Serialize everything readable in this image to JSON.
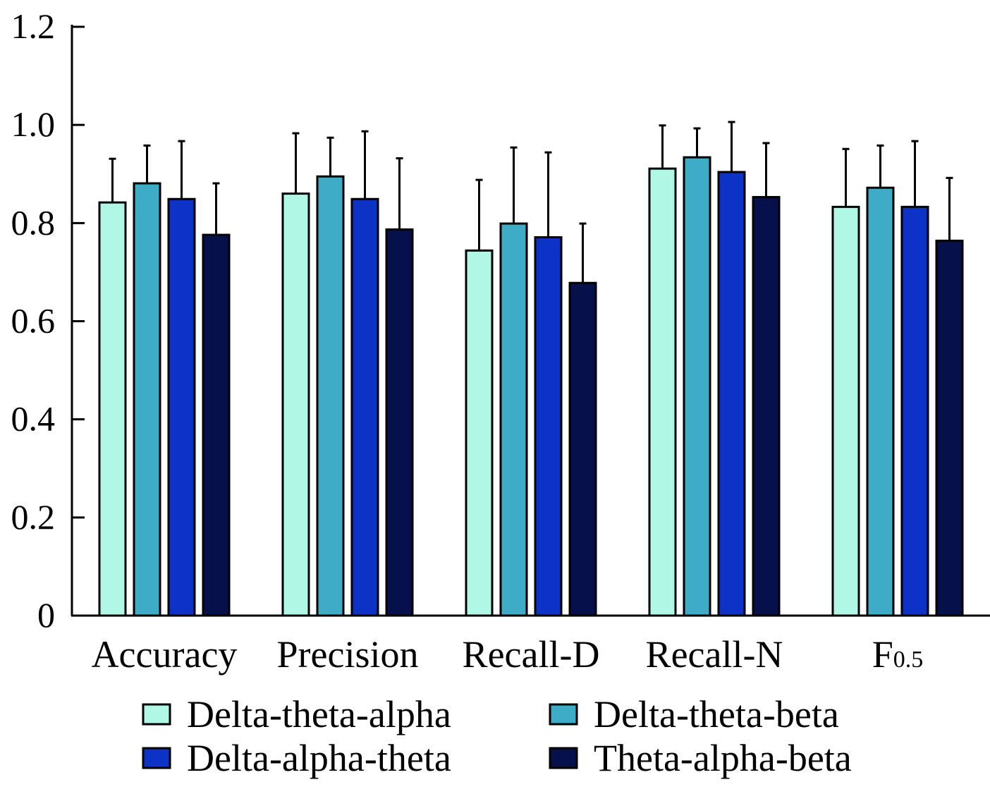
{
  "chart_data": {
    "type": "bar",
    "title": "",
    "xlabel": "",
    "ylabel": "",
    "ylim": [
      0,
      1.2
    ],
    "yticks": [
      "0",
      "0.2",
      "0.4",
      "0.6",
      "0.8",
      "1.0",
      "1.2"
    ],
    "ytick_values": [
      0,
      0.2,
      0.4,
      0.6,
      0.8,
      1.0,
      1.2
    ],
    "categories": [
      "Accuracy",
      "Precision",
      "Recall-D",
      "Recall-N",
      "F"
    ],
    "category_subscripts": [
      "",
      "",
      "",
      "",
      "0.5"
    ],
    "legend_position": "bottom",
    "error_bars": "upper, one standard deviation",
    "series": [
      {
        "name": "Delta-theta-alpha",
        "color": "#b0f7e6",
        "values": [
          0.842,
          0.86,
          0.744,
          0.911,
          0.833
        ],
        "errors": [
          0.089,
          0.123,
          0.144,
          0.088,
          0.118
        ]
      },
      {
        "name": "Delta-theta-beta",
        "color": "#3eabc7",
        "values": [
          0.881,
          0.895,
          0.799,
          0.934,
          0.872
        ],
        "errors": [
          0.077,
          0.079,
          0.155,
          0.059,
          0.086
        ]
      },
      {
        "name": "Delta-alpha-theta",
        "color": "#0d32c6",
        "values": [
          0.849,
          0.849,
          0.771,
          0.904,
          0.833
        ],
        "errors": [
          0.118,
          0.138,
          0.173,
          0.102,
          0.134
        ]
      },
      {
        "name": "Theta-alpha-beta",
        "color": "#06114b",
        "values": [
          0.776,
          0.787,
          0.678,
          0.853,
          0.764
        ],
        "errors": [
          0.105,
          0.145,
          0.121,
          0.11,
          0.128
        ]
      }
    ]
  }
}
